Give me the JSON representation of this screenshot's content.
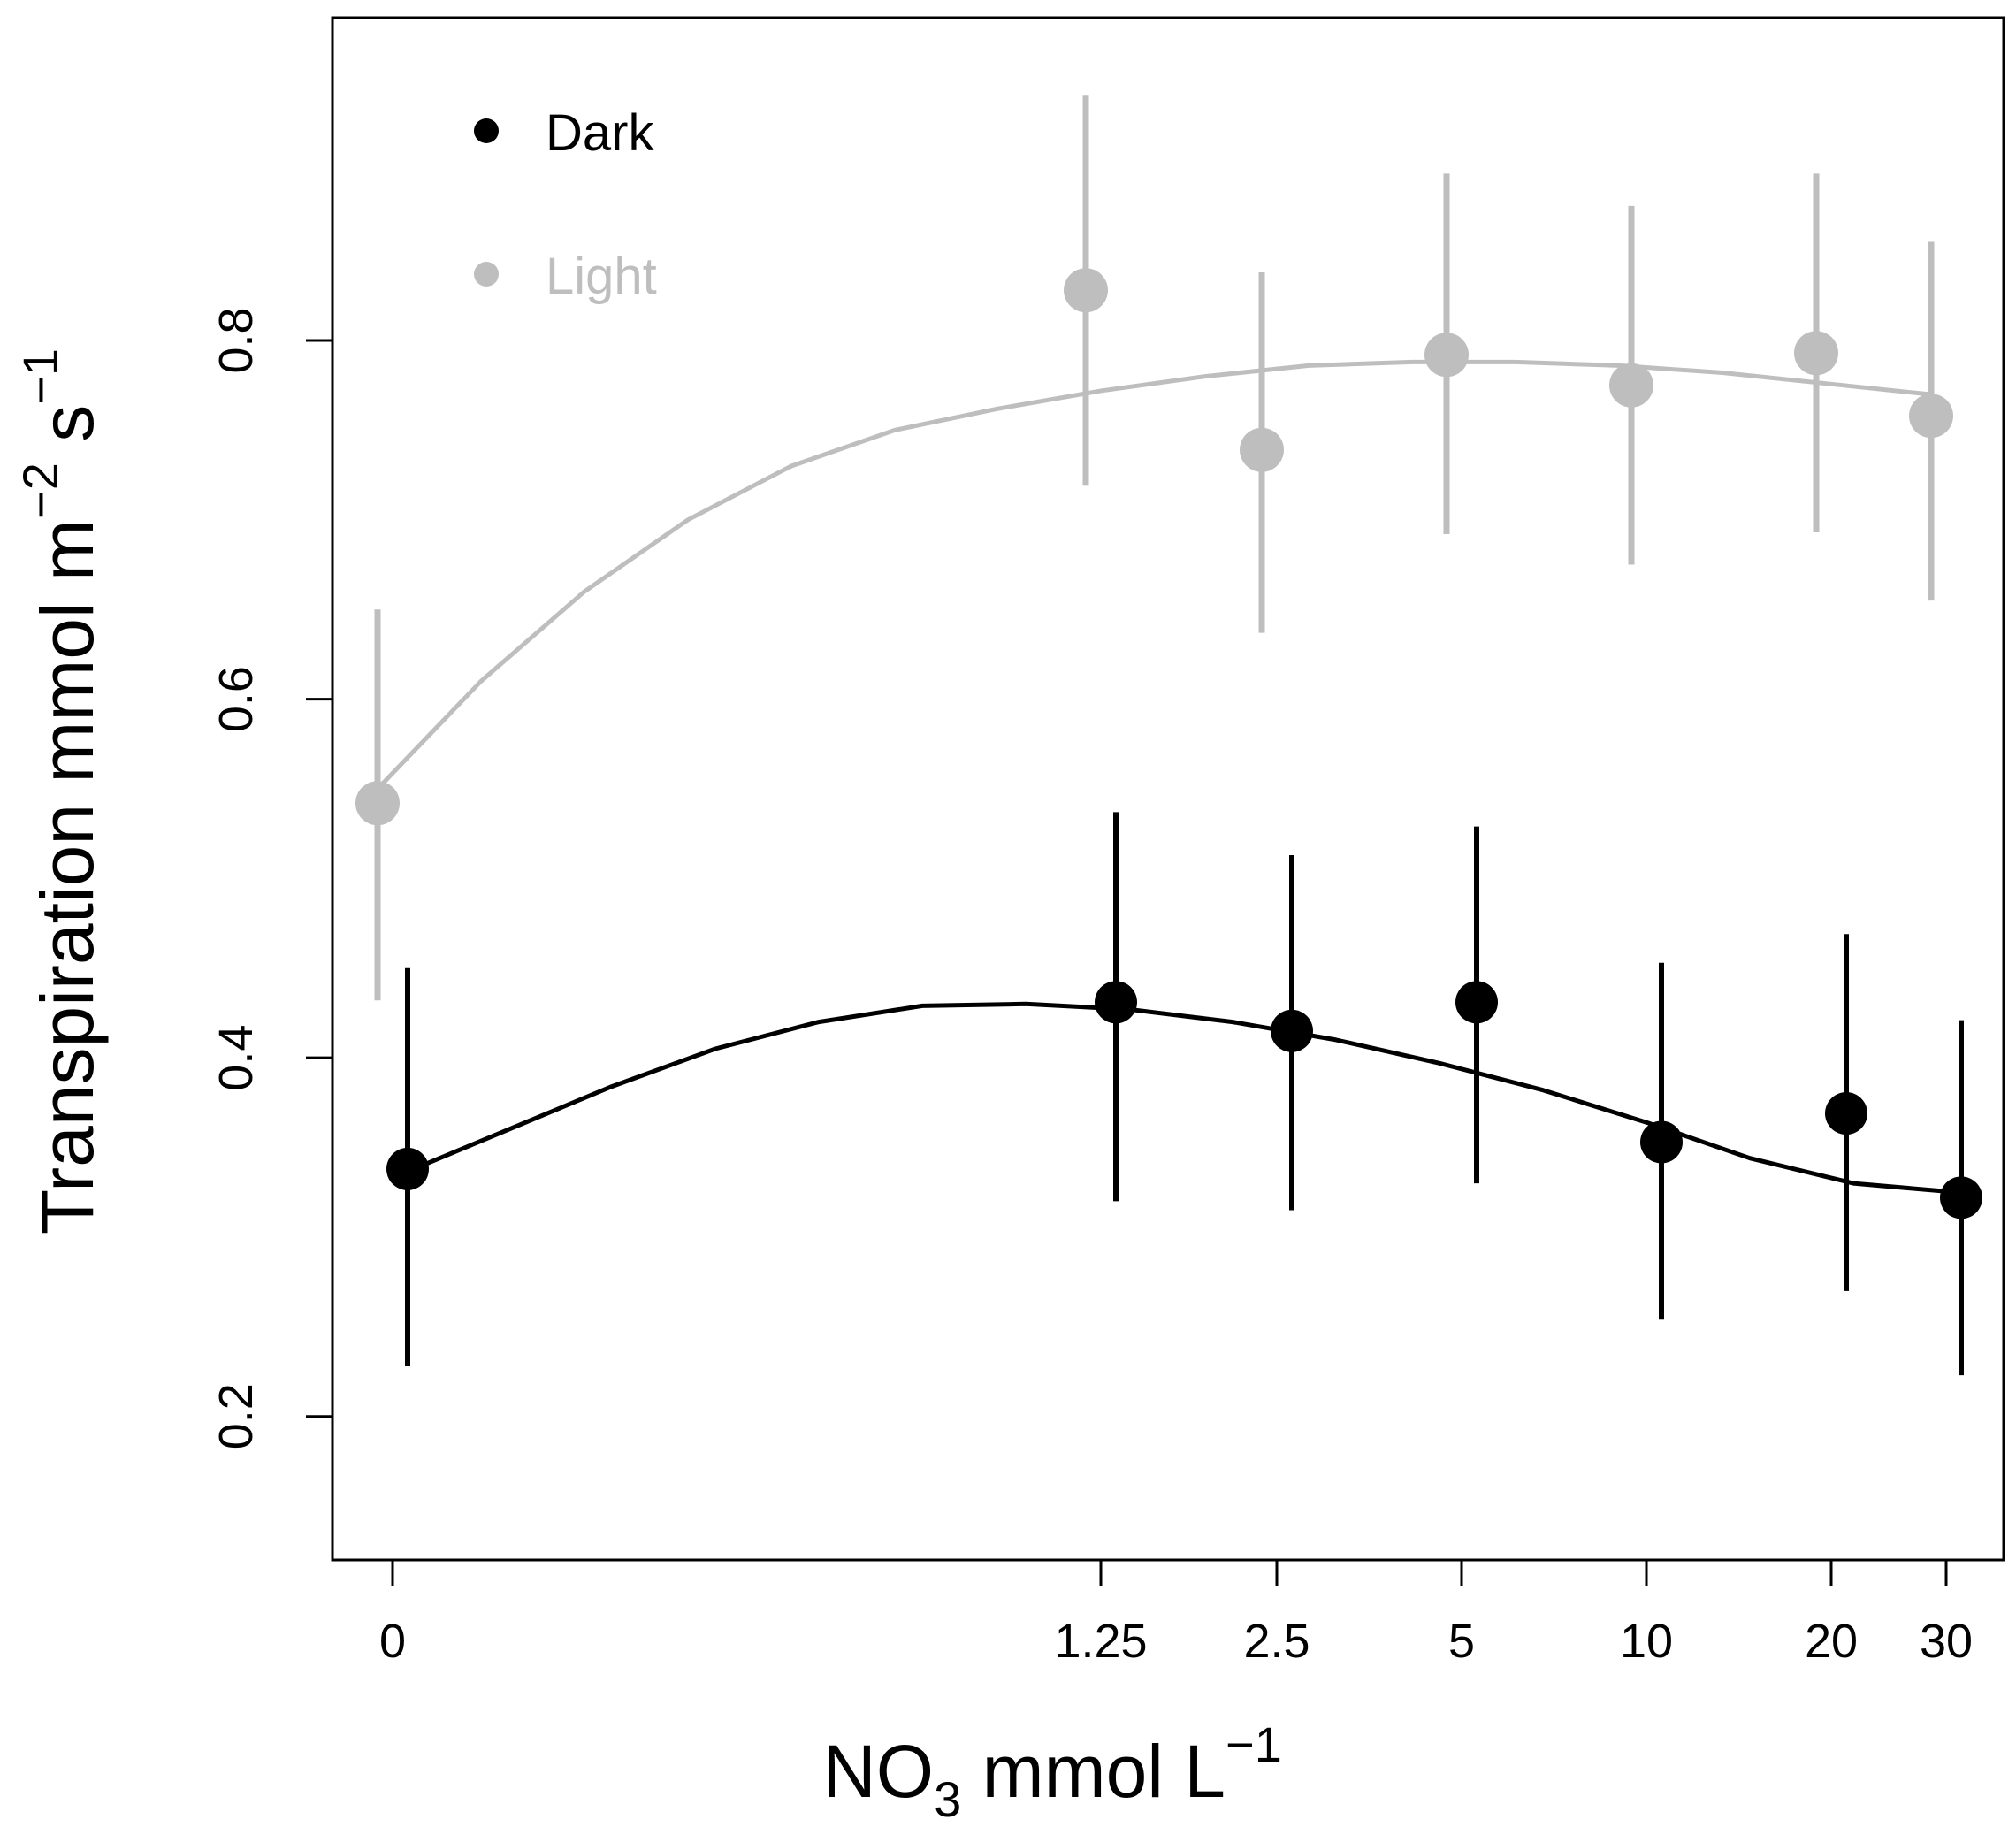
{
  "chart_data": {
    "type": "scatter",
    "title": "",
    "xlabel": {
      "main": "NO",
      "subscript": "3",
      "unit": " mmol L",
      "superscript": "−1"
    },
    "ylabel": {
      "main": "Transpiration mmol m",
      "sup1": "−2",
      "mid": " s",
      "sup2": "−1"
    },
    "categories": [
      "0",
      "1.25",
      "2.5",
      "5",
      "10",
      "20",
      "30"
    ],
    "x_scale_note": "concentration axis with uneven (near-log) spacing between categories",
    "ylim": [
      0.12,
      0.98
    ],
    "yticks": [
      0.2,
      0.4,
      0.6,
      0.8
    ],
    "ytick_labels": [
      "0.2",
      "0.4",
      "0.6",
      "0.8"
    ],
    "legend": {
      "position": "top-left",
      "entries": [
        {
          "label": "Dark",
          "color": "#000000"
        },
        {
          "label": "Light",
          "color": "#bebebe"
        }
      ]
    },
    "series": [
      {
        "name": "Dark",
        "color": "#000000",
        "values": [
          0.338,
          0.431,
          0.415,
          0.431,
          0.353,
          0.369,
          0.322
        ],
        "err_low": [
          0.228,
          0.32,
          0.315,
          0.33,
          0.254,
          0.27,
          0.223
        ],
        "err_high": [
          0.45,
          0.537,
          0.513,
          0.529,
          0.453,
          0.469,
          0.421
        ],
        "fit": [
          0.336,
          0.36,
          0.384,
          0.405,
          0.42,
          0.429,
          0.43,
          0.427,
          0.42,
          0.41,
          0.397,
          0.382,
          0.364,
          0.344,
          0.33,
          0.325
        ]
      },
      {
        "name": "Light",
        "color": "#bebebe",
        "values": [
          0.542,
          0.828,
          0.739,
          0.792,
          0.775,
          0.793,
          0.758
        ],
        "err_low": [
          0.432,
          0.719,
          0.637,
          0.692,
          0.675,
          0.693,
          0.655
        ],
        "err_high": [
          0.65,
          0.937,
          0.838,
          0.893,
          0.875,
          0.893,
          0.855
        ],
        "fit": [
          0.55,
          0.61,
          0.66,
          0.7,
          0.73,
          0.75,
          0.762,
          0.772,
          0.78,
          0.786,
          0.788,
          0.788,
          0.786,
          0.782,
          0.776,
          0.77
        ]
      }
    ]
  }
}
